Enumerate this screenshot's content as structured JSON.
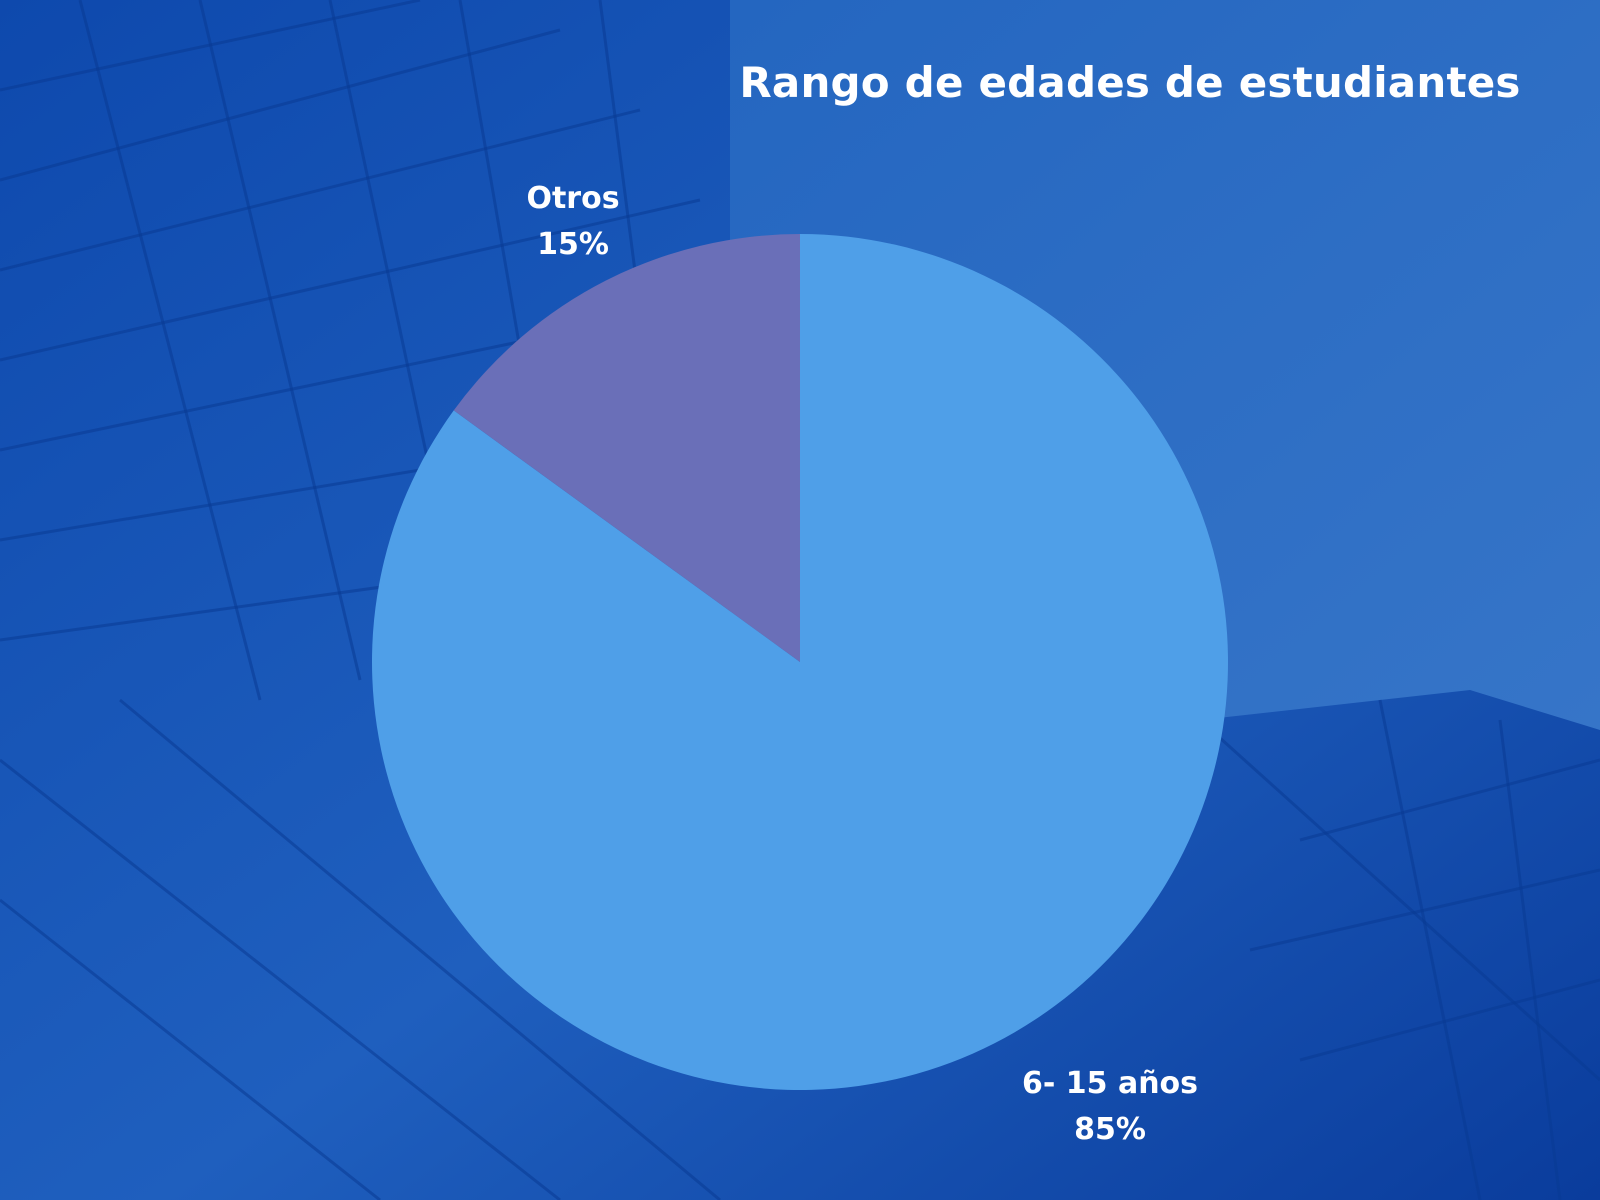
{
  "chart_data": {
    "type": "pie",
    "title": "Rango de edades de estudiantes",
    "slices": [
      {
        "label": "6- 15 años",
        "value": 85,
        "display": "85%",
        "color": "#4f9fe8"
      },
      {
        "label": "Otros",
        "value": 15,
        "display": "15%",
        "color": "#6a6fb8"
      }
    ],
    "start": "12 o'clock",
    "direction": "clockwise",
    "legend": "none"
  },
  "background": {
    "top": "#2a6cc4",
    "bottom": "#0b3fa0"
  }
}
